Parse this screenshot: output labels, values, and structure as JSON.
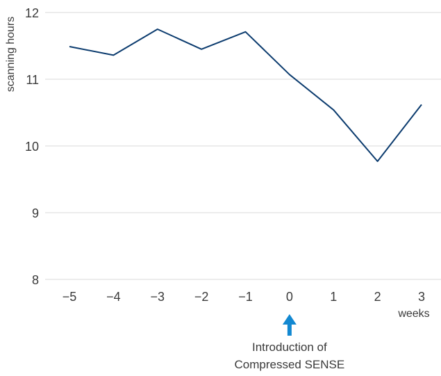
{
  "chart_data": {
    "type": "line",
    "ylabel": "scanning hours",
    "xlabel": "weeks",
    "x": [
      -5,
      -4,
      -3,
      -2,
      -1,
      0,
      1,
      2,
      3
    ],
    "x_tick_labels": [
      "−5",
      "−4",
      "−3",
      "−2",
      "−1",
      "0",
      "1",
      "2",
      "3"
    ],
    "series": [
      {
        "values": [
          11.49,
          11.36,
          11.75,
          11.45,
          11.71,
          11.07,
          10.54,
          9.77,
          10.62
        ]
      }
    ],
    "y_ticks": [
      8,
      9,
      10,
      11,
      12
    ],
    "y_tick_labels": [
      "8",
      "9",
      "10",
      "11",
      "12"
    ],
    "ylim": [
      8,
      12
    ],
    "grid": "horizontal",
    "annotation": {
      "x": 0,
      "line1": "Introduction of",
      "line2": "Compressed SENSE"
    }
  },
  "colors": {
    "line": "#0b3b6e",
    "arrow": "#1288d1",
    "grid": "#d9d9d9",
    "text": "#3a3a3a"
  }
}
